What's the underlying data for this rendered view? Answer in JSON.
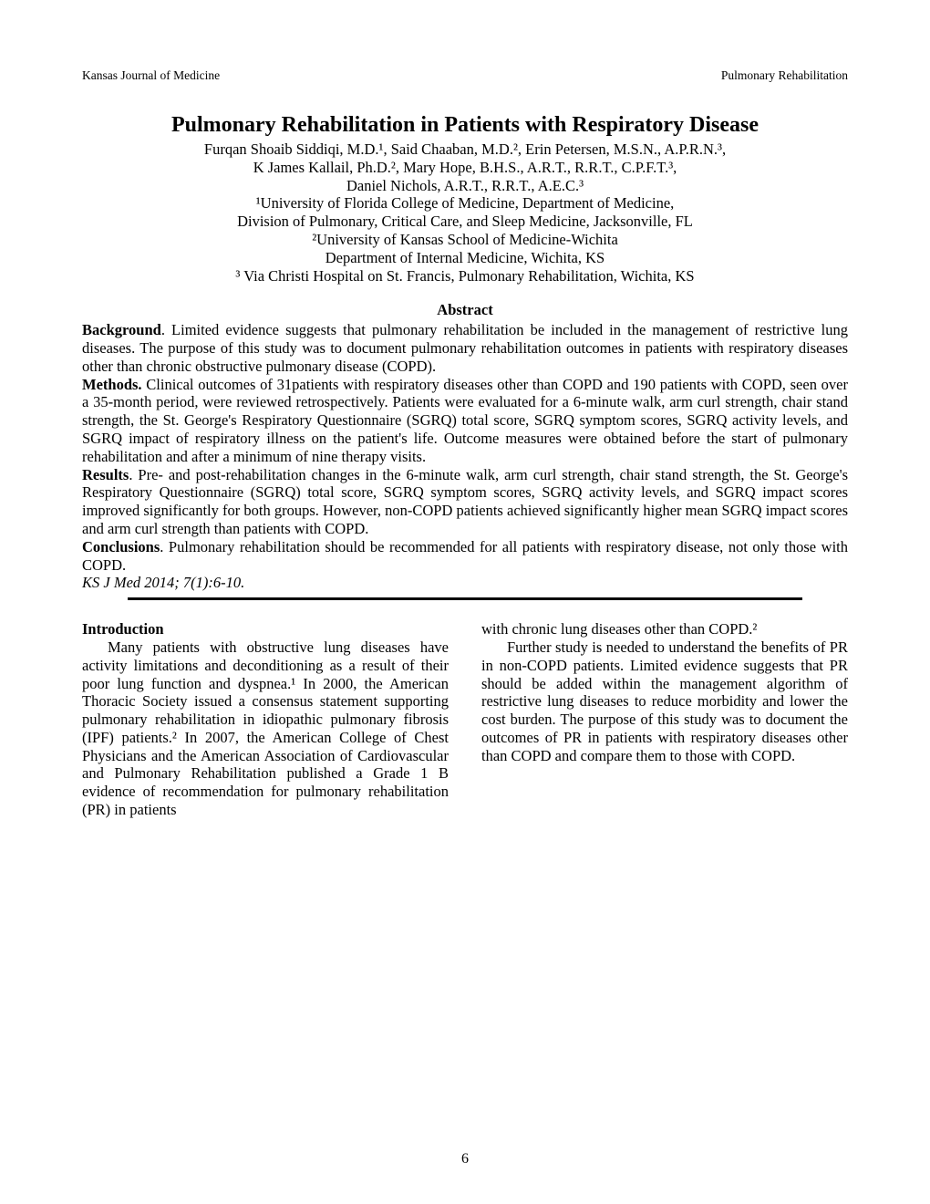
{
  "header": {
    "left": "Kansas Journal of Medicine",
    "right": "Pulmonary Rehabilitation"
  },
  "title": "Pulmonary Rehabilitation in Patients with Respiratory Disease",
  "authors_line1": "Furqan Shoaib Siddiqi, M.D.¹, Said Chaaban, M.D.², Erin Petersen, M.S.N., A.P.R.N.³,",
  "authors_line2": "K James Kallail, Ph.D.², Mary Hope, B.H.S., A.R.T., R.R.T., C.P.F.T.³,",
  "authors_line3": "Daniel Nichols, A.R.T., R.R.T., A.E.C.³",
  "affil_line1": "¹University of Florida College of Medicine, Department of Medicine,",
  "affil_line2": "Division of Pulmonary, Critical Care, and Sleep Medicine, Jacksonville, FL",
  "affil_line3": "²University of Kansas School of Medicine-Wichita",
  "affil_line4": "Department of Internal Medicine, Wichita, KS",
  "affil_line5": "³ Via Christi Hospital on St. Francis, Pulmonary Rehabilitation, Wichita, KS",
  "abstract": {
    "heading": "Abstract",
    "background_label": "Background",
    "background_text": ". Limited evidence suggests that pulmonary rehabilitation be included in the management of restrictive lung diseases. The purpose of this study was to document pulmonary rehabilitation outcomes in patients with respiratory diseases other than chronic obstructive pulmonary disease (COPD).",
    "methods_label": "Methods.",
    "methods_text": " Clinical outcomes of 31patients with respiratory diseases other than COPD and 190 patients with COPD, seen over a 35-month period, were reviewed retrospectively. Patients were evaluated for a 6-minute walk, arm curl strength, chair stand strength, the St. George's Respiratory Questionnaire (SGRQ) total score, SGRQ symptom scores, SGRQ activity levels, and SGRQ impact of respiratory illness on the patient's life. Outcome measures were obtained before the start of pulmonary rehabilitation and after a minimum of nine therapy visits.",
    "results_label": "Results",
    "results_text": ". Pre- and post-rehabilitation changes in the 6-minute walk, arm curl strength, chair stand strength, the St. George's Respiratory Questionnaire (SGRQ) total score, SGRQ symptom scores, SGRQ activity levels, and SGRQ impact scores improved significantly for both groups. However, non-COPD patients achieved significantly higher mean SGRQ impact scores and arm curl strength than patients with COPD.",
    "conclusions_label": "Conclusions",
    "conclusions_text": ". Pulmonary rehabilitation should be recommended for all patients with respiratory disease, not only those with COPD.",
    "citation": "KS J Med 2014; 7(1):6-10."
  },
  "intro": {
    "heading": "Introduction",
    "col1_para": "Many patients with obstructive lung diseases have activity limitations and deconditioning as a result of their poor lung function and dyspnea.¹ In 2000, the American Thoracic Society issued a consensus statement supporting pulmonary rehabilitation in idiopathic pulmonary fibrosis (IPF) patients.² In 2007, the American College of Chest Physicians and the American Association of Cardiovascular and Pulmonary Rehabilitation published a Grade 1 B evidence of recommendation for pulmonary rehabilitation (PR) in patients",
    "col2_para1": "with chronic lung diseases other than COPD.²",
    "col2_para2": "Further study is needed to understand the benefits of PR in non-COPD patients. Limited evidence suggests that PR should be added within the management algorithm of restrictive lung diseases to reduce morbidity and lower the cost burden. The purpose of this study was to document the outcomes of PR in patients with respiratory diseases other than COPD and compare them to those with COPD."
  },
  "page_number": "6"
}
